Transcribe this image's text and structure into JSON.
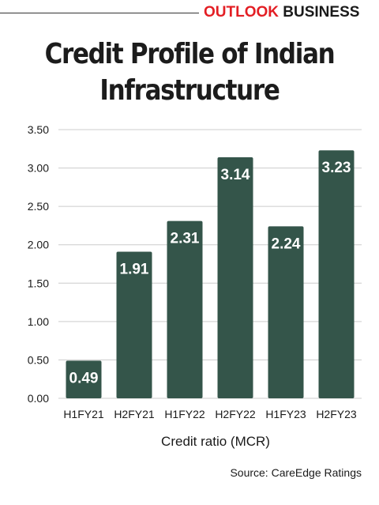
{
  "header": {
    "brand_part1": "OUTLOOK",
    "brand_part2": "BUSINESS"
  },
  "title_line1": "Credit Profile of Indian",
  "title_line2": "Infrastructure",
  "source": "Source: CareEdge Ratings",
  "colors": {
    "bar": "#34554a",
    "brand_red": "#e31e24",
    "grid": "#cccccc"
  },
  "chart_data": {
    "type": "bar",
    "title": "Credit Profile of Indian Infrastructure",
    "categories": [
      "H1FY21",
      "H2FY21",
      "H1FY22",
      "H2FY22",
      "H1FY23",
      "H2FY23"
    ],
    "values": [
      0.49,
      1.91,
      2.31,
      3.14,
      2.24,
      3.23
    ],
    "value_labels": [
      "0.49",
      "1.91",
      "2.31",
      "3.14",
      "2.24",
      "3.23"
    ],
    "xlabel": "Credit ratio (MCR)",
    "ylabel": "",
    "ylim": [
      0,
      3.5
    ],
    "yticks": [
      "0.00",
      "0.50",
      "1.00",
      "1.50",
      "2.00",
      "2.50",
      "3.00",
      "3.50"
    ],
    "grid": true,
    "legend": "none"
  }
}
